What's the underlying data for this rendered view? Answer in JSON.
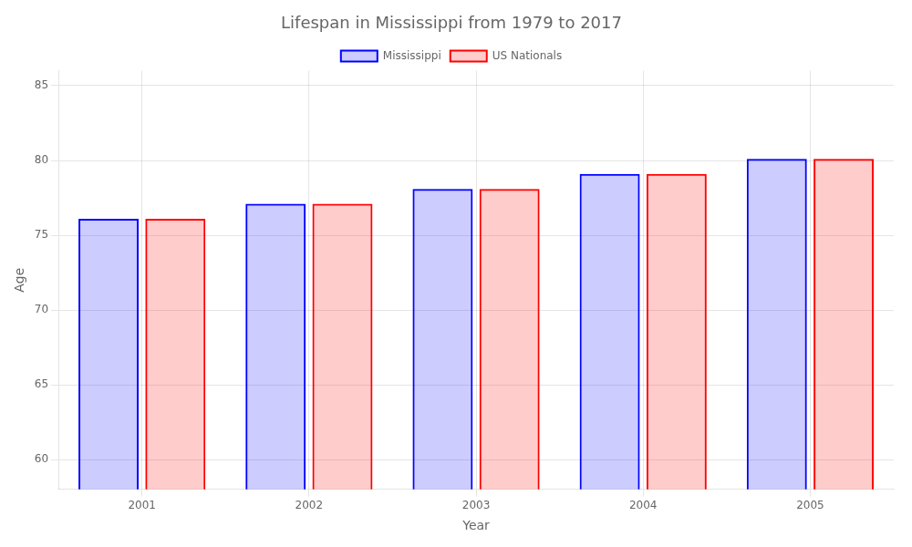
{
  "chart_data": {
    "type": "bar",
    "title": "Lifespan in Mississippi from 1979 to 2017",
    "x_label": "Year",
    "y_label": "Age",
    "categories": [
      "2001",
      "2002",
      "2003",
      "2004",
      "2005"
    ],
    "series": [
      {
        "name": "Mississippi",
        "color": "#0000ff",
        "values": [
          76.1,
          77.1,
          78.1,
          79.1,
          80.1
        ]
      },
      {
        "name": "US Nationals",
        "color": "#ff0000",
        "values": [
          76.1,
          77.1,
          78.1,
          79.1,
          80.1
        ]
      }
    ],
    "ylim": [
      58,
      86
    ],
    "yticks": [
      60,
      65,
      70,
      75,
      80,
      85
    ],
    "grid": true,
    "legend": "top"
  }
}
